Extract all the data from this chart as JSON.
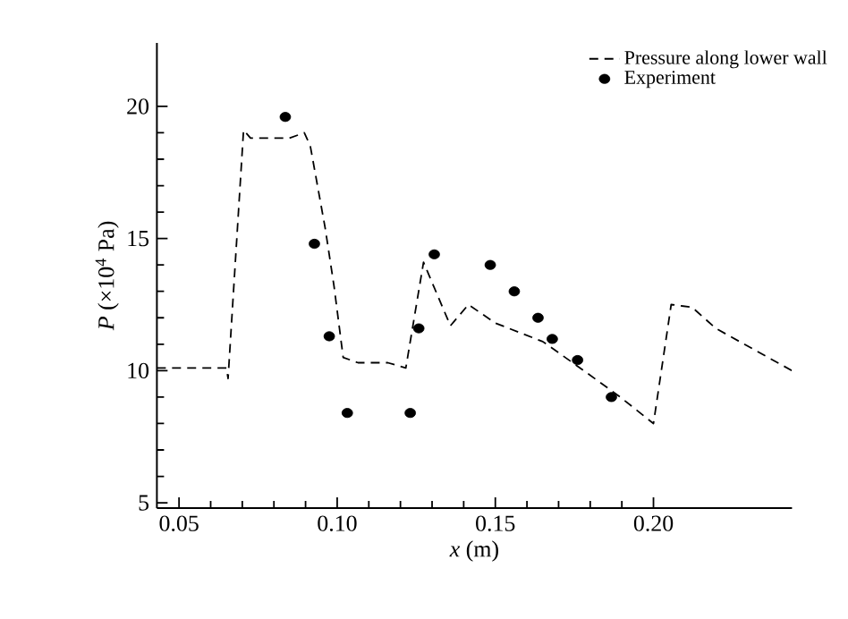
{
  "chart_data": {
    "type": "line",
    "xlabel": "*x* (m)",
    "ylabel": "*P* (×10$^{4}$ Pa)",
    "xlim": [
      0.043,
      0.2438
    ],
    "ylim": [
      4.8,
      22.4
    ],
    "xticks": [
      {
        "value": 0.05,
        "label": "0.05"
      },
      {
        "value": 0.1,
        "label": "0.10"
      },
      {
        "value": 0.15,
        "label": "0.15"
      },
      {
        "value": 0.2,
        "label": "0.20"
      }
    ],
    "yticks": [
      5,
      10,
      15,
      20
    ],
    "grid": false,
    "legend": "top right",
    "series": [
      {
        "name": "Pressure along lower wall",
        "color": "#000000",
        "line_style": "dashed",
        "marker": "none",
        "x": [
          0.043,
          0.065,
          0.0655,
          0.0704,
          0.0726,
          0.0849,
          0.0896,
          0.0915,
          0.0962,
          0.099,
          0.1019,
          0.1066,
          0.116,
          0.1217,
          0.1273,
          0.1358,
          0.1415,
          0.15,
          0.165,
          0.178,
          0.1895,
          0.2,
          0.2056,
          0.2122,
          0.2197,
          0.2438
        ],
        "values": [
          10.1,
          10.1,
          9.7,
          19.1,
          18.8,
          18.8,
          19.0,
          18.5,
          15.4,
          13.2,
          10.5,
          10.3,
          10.3,
          10.1,
          14.1,
          11.7,
          12.5,
          11.8,
          11.1,
          10.0,
          9.0,
          8.0,
          12.5,
          12.4,
          11.6,
          10.0
        ]
      },
      {
        "name": "Experiment",
        "type": "scatter",
        "color": "#000000",
        "marker": "circle",
        "x": [
          0.0836,
          0.0928,
          0.0975,
          0.1032,
          0.1231,
          0.1258,
          0.1307,
          0.1484,
          0.156,
          0.1635,
          0.168,
          0.176,
          0.1867
        ],
        "values": [
          19.6,
          14.8,
          11.3,
          8.4,
          8.4,
          11.6,
          14.4,
          14.0,
          13.0,
          12.0,
          11.2,
          10.4,
          9.0
        ]
      }
    ]
  }
}
